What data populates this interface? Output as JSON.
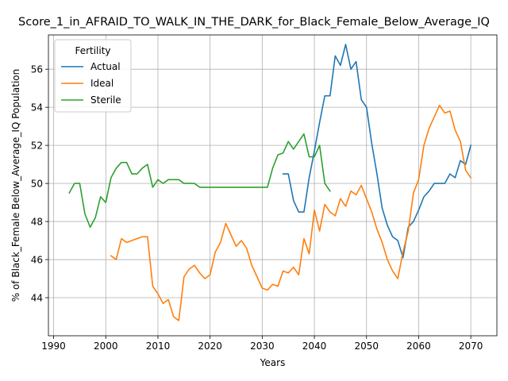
{
  "chart_data": {
    "type": "line",
    "title": "Score_1_in_AFRAID_TO_WALK_IN_THE_DARK_for_Black_Female_Below_Average_IQ",
    "xlabel": "Years",
    "ylabel": "% of Black_Female Below_Average_IQ Population",
    "xlim": [
      1989,
      2075
    ],
    "ylim": [
      42.0,
      57.8
    ],
    "xticks": [
      1990,
      2000,
      2010,
      2020,
      2030,
      2040,
      2050,
      2060,
      2070
    ],
    "yticks": [
      44,
      46,
      48,
      50,
      52,
      54,
      56
    ],
    "grid": true,
    "legend": {
      "title": "Fertility",
      "placement": "top-left"
    },
    "series": [
      {
        "name": "Actual",
        "color": "#1f77b4",
        "points": [
          [
            2034,
            50.5
          ],
          [
            2035,
            50.5
          ],
          [
            2036,
            49.1
          ],
          [
            2037,
            48.5
          ],
          [
            2038,
            48.5
          ],
          [
            2039,
            50.3
          ],
          [
            2040,
            51.7
          ],
          [
            2041,
            53.2
          ],
          [
            2042,
            54.6
          ],
          [
            2043,
            54.6
          ],
          [
            2044,
            56.7
          ],
          [
            2045,
            56.2
          ],
          [
            2046,
            57.3
          ],
          [
            2047,
            56.0
          ],
          [
            2048,
            56.4
          ],
          [
            2049,
            54.4
          ],
          [
            2050,
            54.0
          ],
          [
            2051,
            52.1
          ],
          [
            2052,
            50.5
          ],
          [
            2053,
            48.7
          ],
          [
            2054,
            47.8
          ],
          [
            2055,
            47.2
          ],
          [
            2056,
            47.0
          ],
          [
            2057,
            46.1
          ],
          [
            2058,
            47.7
          ],
          [
            2059,
            48.0
          ],
          [
            2060,
            48.6
          ],
          [
            2061,
            49.3
          ],
          [
            2062,
            49.6
          ],
          [
            2063,
            50.0
          ],
          [
            2064,
            50.0
          ],
          [
            2065,
            50.0
          ],
          [
            2066,
            50.5
          ],
          [
            2067,
            50.3
          ],
          [
            2068,
            51.2
          ],
          [
            2069,
            51.0
          ],
          [
            2070,
            52.0
          ]
        ]
      },
      {
        "name": "Ideal",
        "color": "#ff7f0e",
        "points": [
          [
            2001,
            46.2
          ],
          [
            2002,
            46.0
          ],
          [
            2003,
            47.1
          ],
          [
            2004,
            46.9
          ],
          [
            2005,
            47.0
          ],
          [
            2006,
            47.1
          ],
          [
            2007,
            47.2
          ],
          [
            2008,
            47.2
          ],
          [
            2009,
            44.6
          ],
          [
            2010,
            44.2
          ],
          [
            2011,
            43.7
          ],
          [
            2012,
            43.9
          ],
          [
            2013,
            43.0
          ],
          [
            2014,
            42.8
          ],
          [
            2015,
            45.1
          ],
          [
            2016,
            45.5
          ],
          [
            2017,
            45.7
          ],
          [
            2018,
            45.3
          ],
          [
            2019,
            45.0
          ],
          [
            2020,
            45.2
          ],
          [
            2021,
            46.4
          ],
          [
            2022,
            46.9
          ],
          [
            2023,
            47.9
          ],
          [
            2024,
            47.3
          ],
          [
            2025,
            46.7
          ],
          [
            2026,
            47.0
          ],
          [
            2027,
            46.6
          ],
          [
            2028,
            45.7
          ],
          [
            2029,
            45.1
          ],
          [
            2030,
            44.5
          ],
          [
            2031,
            44.4
          ],
          [
            2032,
            44.7
          ],
          [
            2033,
            44.6
          ],
          [
            2034,
            45.4
          ],
          [
            2035,
            45.3
          ],
          [
            2036,
            45.6
          ],
          [
            2037,
            45.2
          ],
          [
            2038,
            47.1
          ],
          [
            2039,
            46.3
          ],
          [
            2040,
            48.6
          ],
          [
            2041,
            47.5
          ],
          [
            2042,
            48.9
          ],
          [
            2043,
            48.5
          ],
          [
            2044,
            48.3
          ],
          [
            2045,
            49.2
          ],
          [
            2046,
            48.8
          ],
          [
            2047,
            49.6
          ],
          [
            2048,
            49.4
          ],
          [
            2049,
            49.9
          ],
          [
            2050,
            49.2
          ],
          [
            2051,
            48.5
          ],
          [
            2052,
            47.6
          ],
          [
            2053,
            46.9
          ],
          [
            2054,
            46.0
          ],
          [
            2055,
            45.4
          ],
          [
            2056,
            45.0
          ],
          [
            2057,
            46.4
          ],
          [
            2058,
            47.5
          ],
          [
            2059,
            49.5
          ],
          [
            2060,
            50.2
          ],
          [
            2061,
            52.0
          ],
          [
            2062,
            52.9
          ],
          [
            2063,
            53.5
          ],
          [
            2064,
            54.1
          ],
          [
            2065,
            53.7
          ],
          [
            2066,
            53.8
          ],
          [
            2067,
            52.8
          ],
          [
            2068,
            52.2
          ],
          [
            2069,
            50.7
          ],
          [
            2070,
            50.3
          ]
        ]
      },
      {
        "name": "Sterile",
        "color": "#2ca02c",
        "points": [
          [
            1993,
            49.5
          ],
          [
            1994,
            50.0
          ],
          [
            1995,
            50.0
          ],
          [
            1996,
            48.4
          ],
          [
            1997,
            47.7
          ],
          [
            1998,
            48.2
          ],
          [
            1999,
            49.3
          ],
          [
            2000,
            49.0
          ],
          [
            2001,
            50.3
          ],
          [
            2002,
            50.8
          ],
          [
            2003,
            51.1
          ],
          [
            2004,
            51.1
          ],
          [
            2005,
            50.5
          ],
          [
            2006,
            50.5
          ],
          [
            2007,
            50.8
          ],
          [
            2008,
            51.0
          ],
          [
            2009,
            49.8
          ],
          [
            2010,
            50.2
          ],
          [
            2011,
            50.0
          ],
          [
            2012,
            50.2
          ],
          [
            2013,
            50.2
          ],
          [
            2014,
            50.2
          ],
          [
            2015,
            50.0
          ],
          [
            2016,
            50.0
          ],
          [
            2017,
            50.0
          ],
          [
            2018,
            49.8
          ],
          [
            2019,
            49.8
          ],
          [
            2020,
            49.8
          ],
          [
            2021,
            49.8
          ],
          [
            2022,
            49.8
          ],
          [
            2023,
            49.8
          ],
          [
            2024,
            49.8
          ],
          [
            2025,
            49.8
          ],
          [
            2026,
            49.8
          ],
          [
            2027,
            49.8
          ],
          [
            2028,
            49.8
          ],
          [
            2029,
            49.8
          ],
          [
            2030,
            49.8
          ],
          [
            2031,
            49.8
          ],
          [
            2032,
            50.8
          ],
          [
            2033,
            51.5
          ],
          [
            2034,
            51.6
          ],
          [
            2035,
            52.2
          ],
          [
            2036,
            51.8
          ],
          [
            2037,
            52.2
          ],
          [
            2038,
            52.6
          ],
          [
            2039,
            51.4
          ],
          [
            2040,
            51.4
          ],
          [
            2041,
            52.0
          ],
          [
            2042,
            50.0
          ],
          [
            2043,
            49.6
          ]
        ]
      }
    ]
  }
}
